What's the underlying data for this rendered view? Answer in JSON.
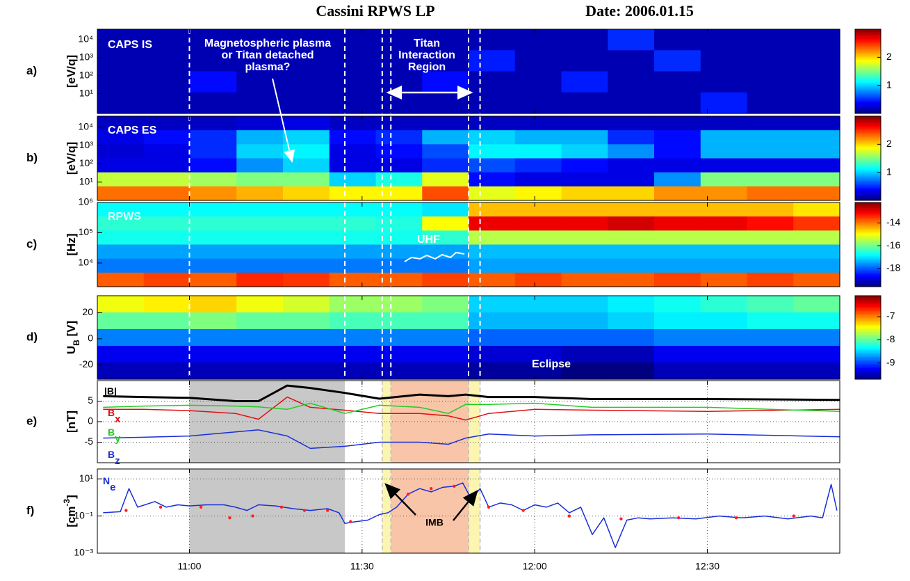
{
  "header": {
    "title": "Cassini RPWS LP",
    "date": "Date: 2006.01.15"
  },
  "dashed": [
    660,
    687,
    693.5,
    695,
    708.5,
    710.5
  ],
  "regions": [
    {
      "range": [
        660,
        687
      ],
      "color": "#c8c8c8"
    },
    {
      "range": [
        693.5,
        695
      ],
      "color": "#fbf5b0"
    },
    {
      "range": [
        695,
        708.5
      ],
      "color": "#f9c5a8"
    },
    {
      "range": [
        708.5,
        710.5
      ],
      "color": "#fbf5b0"
    }
  ],
  "chart_data": [
    {
      "type": "heatmap",
      "panel_label": "a)",
      "ylabel": [
        {
          "text": "[eV/q]"
        }
      ],
      "log": true,
      "note": "CAPS IS",
      "note_plasma": [
        "Magnetospheric plasma",
        "or Titan detached",
        "plasma?"
      ],
      "note_titan": [
        "Titan",
        "Interaction",
        "Region"
      ],
      "xlim": [
        644,
        773
      ],
      "xticks": [
        {
          "value": 660,
          "label": "11:00"
        },
        {
          "value": 690,
          "label": "11:30"
        },
        {
          "value": 720,
          "label": "12:00"
        },
        {
          "value": 750,
          "label": "12:30"
        }
      ],
      "ylim": [
        0.8,
        38000
      ],
      "yticks": [
        {
          "value": 10,
          "label": "10¹"
        },
        {
          "value": 100,
          "label": "10²"
        },
        {
          "value": 1000,
          "label": "10³"
        },
        {
          "value": 10000,
          "label": "10⁴"
        }
      ],
      "clim": [
        0,
        3
      ],
      "cticks": [
        1,
        2
      ],
      "dashed": true,
      "z": [
        [
          0.15,
          0.15,
          0.15,
          0.15,
          0.15,
          0.15,
          0.15,
          0.15,
          0.15,
          0.15,
          0.15,
          0.5,
          0.15,
          0.15,
          0.15,
          0.15
        ],
        [
          0.15,
          0.15,
          0.15,
          0.15,
          0.15,
          0.15,
          0.15,
          0.15,
          0.45,
          0.15,
          0.15,
          0.15,
          0.5,
          0.15,
          0.15,
          0.15
        ],
        [
          0.15,
          0.15,
          0.4,
          0.15,
          0.15,
          0.15,
          0.15,
          0.4,
          0.15,
          0.15,
          0.45,
          0.15,
          0.15,
          0.15,
          0.15,
          0.15
        ],
        [
          0.15,
          0.15,
          0.15,
          0.15,
          0.15,
          0.15,
          0.15,
          0.15,
          0.15,
          0.15,
          0.15,
          0.15,
          0.15,
          0.45,
          0.15,
          0.15
        ]
      ]
    },
    {
      "type": "heatmap",
      "panel_label": "b)",
      "ylabel": [
        {
          "text": "[eV/q]"
        }
      ],
      "log": true,
      "note": "CAPS ES",
      "xlim": [
        644,
        773
      ],
      "xticks": [
        {
          "value": 660,
          "label": "11:00"
        },
        {
          "value": 690,
          "label": "11:30"
        },
        {
          "value": 720,
          "label": "12:00"
        },
        {
          "value": 750,
          "label": "12:30"
        }
      ],
      "ylim": [
        1,
        40000
      ],
      "yticks": [
        {
          "value": 10,
          "label": "10¹"
        },
        {
          "value": 100,
          "label": "10²"
        },
        {
          "value": 1000,
          "label": "10³"
        },
        {
          "value": 10000,
          "label": "10⁴"
        }
      ],
      "clim": [
        0,
        3
      ],
      "cticks": [
        1,
        2
      ],
      "dashed": true,
      "z": [
        [
          0.2,
          0.2,
          0.2,
          0.25,
          0.3,
          0.2,
          0.2,
          0.2,
          0.2,
          0.2,
          0.2,
          0.2,
          0.2,
          0.2,
          0.2,
          0.2
        ],
        [
          0.3,
          0.4,
          0.5,
          0.9,
          1.0,
          0.4,
          0.5,
          0.9,
          1.0,
          0.9,
          0.9,
          0.5,
          0.4,
          0.9,
          0.9,
          0.9
        ],
        [
          0.25,
          0.3,
          0.5,
          1.0,
          1.1,
          0.3,
          0.4,
          0.6,
          1.1,
          1.1,
          1.0,
          0.8,
          0.4,
          0.9,
          0.9,
          0.9
        ],
        [
          0.3,
          0.3,
          0.4,
          0.8,
          1.0,
          0.3,
          0.3,
          0.5,
          0.6,
          0.5,
          0.4,
          0.3,
          0.3,
          0.3,
          0.3,
          0.3
        ],
        [
          1.7,
          1.7,
          1.6,
          1.5,
          1.5,
          1.0,
          1.2,
          1.8,
          0.4,
          0.3,
          0.3,
          0.3,
          0.8,
          1.5,
          1.5,
          1.5
        ],
        [
          2.3,
          2.3,
          2.2,
          2.1,
          2.0,
          1.9,
          1.9,
          2.4,
          1.8,
          1.9,
          2.0,
          2.0,
          2.2,
          2.2,
          2.3,
          2.3
        ]
      ]
    },
    {
      "type": "heatmap",
      "panel_label": "c)",
      "ylabel": [
        {
          "text": "[Hz]"
        }
      ],
      "log": true,
      "note": "RPWS",
      "note_uhf": "UHF",
      "xlim": [
        644,
        773
      ],
      "xticks": [
        {
          "value": 660,
          "label": "11:00"
        },
        {
          "value": 690,
          "label": "11:30"
        },
        {
          "value": 720,
          "label": "12:00"
        },
        {
          "value": 750,
          "label": "12:30"
        }
      ],
      "ylim": [
        1650,
        1000000
      ],
      "yticks": [
        {
          "value": 10000,
          "label": "10⁴"
        },
        {
          "value": 100000,
          "label": "10⁵"
        },
        {
          "value": 1000000,
          "label": "10⁶"
        }
      ],
      "clim": [
        -19.6,
        -12.2
      ],
      "cticks": [
        -14,
        -16,
        -18
      ],
      "dashed": true,
      "z": [
        [
          -16.8,
          -16.8,
          -16.8,
          -16.8,
          -16.8,
          -16.8,
          -16.8,
          -17,
          -14.5,
          -14.5,
          -14.5,
          -14.5,
          -14.5,
          -14.5,
          -14.5,
          -14.8
        ],
        [
          -16.5,
          -16.5,
          -16.5,
          -16.5,
          -16.5,
          -16.5,
          -16.6,
          -15,
          -13,
          -13,
          -13,
          -12.8,
          -13,
          -13,
          -13.2,
          -13.5
        ],
        [
          -16.7,
          -16.7,
          -16.7,
          -16.7,
          -16.7,
          -16.7,
          -16.7,
          -16.5,
          -15.5,
          -15.5,
          -15.5,
          -15.5,
          -15.5,
          -15.5,
          -15.5,
          -15.5
        ],
        [
          -17.5,
          -17.5,
          -17.5,
          -17.5,
          -17.5,
          -17.5,
          -17.5,
          -17.5,
          -17.3,
          -17.3,
          -17.3,
          -17.3,
          -17.3,
          -17.3,
          -17.3,
          -17.3
        ],
        [
          -17.8,
          -17.8,
          -17.8,
          -17.8,
          -17.8,
          -17.8,
          -17.8,
          -17.8,
          -17.5,
          -17.5,
          -17.5,
          -17.5,
          -17.5,
          -17.5,
          -17.5,
          -17.5
        ],
        [
          -13.8,
          -13.6,
          -13.8,
          -13.4,
          -13.5,
          -13.8,
          -13.8,
          -13.6,
          -13.8,
          -13.6,
          -13.8,
          -13.8,
          -13.6,
          -13.8,
          -13.6,
          -13.8
        ]
      ]
    },
    {
      "type": "heatmap",
      "panel_label": "d)",
      "ylabel": [
        {
          "text": "U"
        },
        {
          "text": "B",
          "sub": true
        },
        {
          "text": " [V]"
        }
      ],
      "log": false,
      "note": "Eclipse",
      "xlim": [
        644,
        773
      ],
      "xticks": [
        {
          "value": 660,
          "label": "11:00"
        },
        {
          "value": 690,
          "label": "11:30"
        },
        {
          "value": 720,
          "label": "12:00"
        },
        {
          "value": 750,
          "label": "12:30"
        }
      ],
      "ylim": [
        -31,
        33
      ],
      "yticks": [
        -20,
        0,
        20
      ],
      "clim": [
        -9.7,
        -6.1
      ],
      "cticks": [
        -7,
        -8,
        -9
      ],
      "dashed": true,
      "z": [
        [
          -7.5,
          -7.4,
          -7.3,
          -7.5,
          -7.6,
          -7.8,
          -7.8,
          -7.9,
          -8.5,
          -8.5,
          -8.5,
          -8.4,
          -8.3,
          -8.2,
          -8.1,
          -8.0
        ],
        [
          -8.0,
          -8.0,
          -7.9,
          -8.0,
          -8.0,
          -8.1,
          -8.1,
          -8.1,
          -8.6,
          -8.6,
          -8.6,
          -8.5,
          -8.4,
          -8.4,
          -8.3,
          -8.3
        ],
        [
          -8.8,
          -8.8,
          -8.8,
          -8.8,
          -8.8,
          -8.8,
          -8.8,
          -8.8,
          -8.9,
          -8.9,
          -8.9,
          -8.9,
          -8.8,
          -8.8,
          -8.8,
          -8.8
        ],
        [
          -9.3,
          -9.3,
          -9.3,
          -9.3,
          -9.3,
          -9.3,
          -9.3,
          -9.3,
          -9.4,
          -9.4,
          -9.5,
          -9.5,
          -9.3,
          -9.3,
          -9.3,
          -9.3
        ],
        [
          -9.5,
          -9.5,
          -9.5,
          -9.5,
          -9.5,
          -9.5,
          -9.5,
          -9.5,
          -9.6,
          -9.6,
          -9.8,
          -9.8,
          -9.5,
          -9.5,
          -9.5,
          -9.5
        ]
      ]
    },
    {
      "type": "line",
      "panel_label": "e)",
      "ylabel": [
        {
          "text": "[nT]"
        }
      ],
      "log": false,
      "grid": true,
      "shaded": true,
      "xlim": [
        644,
        773
      ],
      "xticks": [
        {
          "value": 660,
          "label": "11:00"
        },
        {
          "value": 690,
          "label": "11:30"
        },
        {
          "value": 720,
          "label": "12:00"
        },
        {
          "value": 750,
          "label": "12:30"
        }
      ],
      "ylim": [
        -10,
        10
      ],
      "yticks": [
        -5,
        0,
        5
      ],
      "x": [
        645,
        652,
        660,
        668,
        672,
        677,
        681,
        687,
        693,
        700,
        705,
        708,
        712,
        720,
        730,
        750,
        773
      ],
      "series": [
        {
          "name": "|B|",
          "color": "#000000",
          "width": 3,
          "values": [
            6.2,
            6.0,
            5.8,
            5.0,
            5.0,
            8.8,
            8.2,
            7.0,
            5.6,
            6.6,
            6.2,
            6.6,
            6.0,
            6.0,
            5.5,
            5.5,
            5.3
          ]
        },
        {
          "name": "B",
          "subscript": "x",
          "color": "#e01010",
          "width": 1.5,
          "values": [
            3.0,
            3.0,
            2.7,
            2.0,
            0.6,
            6.0,
            3.5,
            2.8,
            2.0,
            2.0,
            1.4,
            0.4,
            2.0,
            3.0,
            2.8,
            2.5,
            3.0
          ]
        },
        {
          "name": "B",
          "subscript": "y",
          "color": "#22cc22",
          "width": 1.5,
          "values": [
            3.5,
            3.8,
            4.0,
            3.8,
            3.6,
            3.0,
            4.5,
            2.0,
            4.0,
            3.5,
            2.0,
            4.2,
            4.2,
            4.5,
            3.5,
            3.5,
            2.5
          ]
        },
        {
          "name": "B",
          "subscript": "z",
          "color": "#1a2ed8",
          "width": 1.5,
          "values": [
            -4.0,
            -3.8,
            -3.5,
            -2.5,
            -2.0,
            -3.5,
            -6.5,
            -6.0,
            -5.0,
            -5.0,
            -5.5,
            -4.0,
            -3.0,
            -3.5,
            -3.2,
            -3.0,
            -3.7
          ]
        }
      ]
    },
    {
      "type": "line",
      "panel_label": "f)",
      "ylabel": [
        {
          "text": "[cm"
        },
        {
          "text": "-3",
          "sup": true
        },
        {
          "text": "]"
        }
      ],
      "log": true,
      "grid": true,
      "shaded": true,
      "show_xtick_labels": true,
      "note": "IMB",
      "xlim": [
        644,
        773
      ],
      "xticks": [
        {
          "value": 660,
          "label": "11:00"
        },
        {
          "value": 690,
          "label": "11:30"
        },
        {
          "value": 720,
          "label": "12:00"
        },
        {
          "value": 750,
          "label": "12:30"
        }
      ],
      "ylim": [
        0.001,
        34
      ],
      "yticks": [
        {
          "value": 0.001,
          "label": "10⁻³"
        },
        {
          "value": 0.1,
          "label": "10⁻¹"
        },
        {
          "value": 10,
          "label": "10¹"
        }
      ],
      "series": [
        {
          "name": "N",
          "subscript": "e",
          "color": "#1a2ed8",
          "width": 1.5,
          "x": [
            645,
            648,
            649.5,
            651,
            654,
            656,
            658,
            660,
            663,
            666,
            668,
            670,
            672,
            675,
            678,
            681,
            684,
            686,
            687,
            689,
            691,
            693,
            694.5,
            696,
            698,
            700,
            702,
            704,
            706,
            707.5,
            709,
            710.5,
            712,
            714,
            716,
            718,
            720,
            722,
            724,
            726,
            728,
            730,
            732,
            734,
            736,
            738,
            740,
            744,
            748,
            752,
            756,
            760,
            764,
            768,
            770,
            771.5,
            772.5
          ],
          "values": [
            0.15,
            0.17,
            3,
            0.3,
            0.6,
            0.3,
            0.4,
            0.35,
            0.4,
            0.4,
            0.3,
            0.2,
            0.4,
            0.35,
            0.25,
            0.2,
            0.25,
            0.15,
            0.04,
            0.05,
            0.06,
            0.12,
            0.15,
            0.3,
            1.5,
            3,
            2,
            3.5,
            4,
            6,
            0.8,
            3,
            0.3,
            0.5,
            0.4,
            0.2,
            0.4,
            0.3,
            0.5,
            0.15,
            0.3,
            0.01,
            0.08,
            0.002,
            0.06,
            0.08,
            0.07,
            0.08,
            0.07,
            0.1,
            0.08,
            0.1,
            0.07,
            0.1,
            0.08,
            5,
            0.2
          ]
        },
        {
          "color": "#ff2020",
          "markers": true,
          "x": [
            649,
            655,
            662,
            667,
            671,
            676,
            680,
            684,
            688,
            698,
            702,
            706,
            712,
            718,
            726,
            735,
            745,
            755,
            765
          ],
          "values": [
            0.2,
            0.3,
            0.3,
            0.08,
            0.1,
            0.3,
            0.2,
            0.2,
            0.05,
            1.5,
            3,
            4,
            0.3,
            0.2,
            0.1,
            0.07,
            0.08,
            0.08,
            0.1
          ]
        }
      ]
    }
  ]
}
